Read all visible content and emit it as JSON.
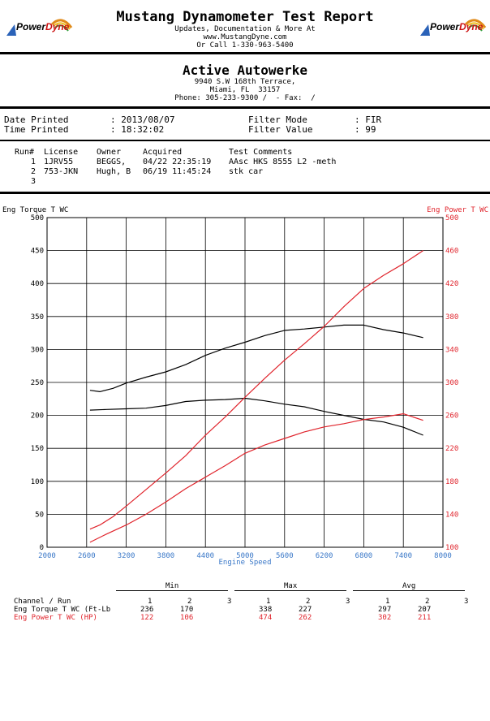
{
  "header": {
    "title": "Mustang Dynamometer Test Report",
    "line1": "Updates, Documentation & More At",
    "line2": "www.MustangDyne.com",
    "line3": "Or Call 1-330-963-5400",
    "logo_left": {
      "power": "Power",
      "dyne": "Dyne"
    },
    "logo_right": {
      "power": "Power",
      "dyne": "Dyne"
    }
  },
  "shop": {
    "name": "Active Autowerke",
    "address1": "9940 S.W 168th Terrace,",
    "address2": "Miami, FL  33157",
    "phone": "Phone: 305-233-9300 /  - Fax:  /"
  },
  "info": {
    "date_label": "Date Printed",
    "date_value": ": 2013/08/07",
    "time_label": "Time Printed",
    "time_value": ": 18:32:02",
    "filter_mode_label": "Filter Mode",
    "filter_mode_value": ": FIR",
    "filter_value_label": "Filter Value",
    "filter_value_value": ": 99"
  },
  "runs": {
    "headers": [
      "Run#",
      "License",
      "Owner",
      "Acquired",
      "Test Comments"
    ],
    "rows": [
      [
        "1",
        "1JRV55",
        "BEGGS,",
        "04/22 22:35:19",
        "AAsc HKS 8555 L2 -meth"
      ],
      [
        "2",
        "753-JKN",
        "Hugh, B",
        "06/19 11:45:24",
        "stk car"
      ],
      [
        "3",
        "",
        "",
        "",
        ""
      ]
    ]
  },
  "summary": {
    "group_min": "Min",
    "group_max": "Max",
    "group_avg": "Avg",
    "channel_header": "Channel / Run",
    "run_numbers": [
      "1",
      "2",
      "3"
    ],
    "rows": [
      {
        "label": "Eng Torque T WC (Ft-Lb",
        "min": [
          "236",
          "170",
          ""
        ],
        "max": [
          "338",
          "227",
          ""
        ],
        "avg": [
          "297",
          "207",
          ""
        ]
      },
      {
        "label": "Eng Power T WC (HP)",
        "min": [
          "122",
          "106",
          ""
        ],
        "max": [
          "474",
          "262",
          ""
        ],
        "avg": [
          "302",
          "211",
          ""
        ]
      }
    ]
  },
  "chart_data": {
    "type": "line",
    "left_axis_label": "Eng Torque T WC",
    "right_axis_label": "Eng Power T WC",
    "xlabel": "Engine Speed",
    "xlim": [
      2000,
      8000
    ],
    "x_ticks": [
      "2000",
      "2600",
      "3200",
      "3800",
      "4400",
      "5000",
      "5600",
      "6200",
      "6800",
      "7400",
      "8000"
    ],
    "ylim_left": [
      0,
      500
    ],
    "y_ticks_left": [
      "0",
      "50",
      "100",
      "150",
      "200",
      "250",
      "300",
      "350",
      "400",
      "450",
      "500"
    ],
    "ylim_right": [
      100,
      500
    ],
    "y_ticks_right": [
      "100",
      "140",
      "180",
      "220",
      "260",
      "300",
      "340",
      "380",
      "420",
      "460",
      "500"
    ],
    "grid": true,
    "colors": {
      "torque": "#000000",
      "power": "#e0242c",
      "axis_tick": "#3a78c8",
      "right_axis": "#e0242c"
    },
    "series": [
      {
        "axis": "left",
        "color": "#000000",
        "x": [
          2650,
          2800,
          3000,
          3200,
          3500,
          3800,
          4100,
          4400,
          4700,
          5000,
          5300,
          5600,
          5900,
          6200,
          6500,
          6800,
          7100,
          7400,
          7700
        ],
        "y": [
          238,
          236,
          241,
          249,
          258,
          266,
          277,
          291,
          302,
          311,
          321,
          329,
          331,
          334,
          337,
          337,
          330,
          325,
          318
        ]
      },
      {
        "axis": "left",
        "color": "#000000",
        "x": [
          2650,
          2900,
          3200,
          3500,
          3800,
          4100,
          4400,
          4700,
          5000,
          5300,
          5600,
          5900,
          6200,
          6500,
          6800,
          7100,
          7400,
          7700
        ],
        "y": [
          208,
          209,
          210,
          211,
          215,
          221,
          223,
          224,
          226,
          222,
          217,
          213,
          206,
          200,
          194,
          190,
          182,
          170
        ]
      },
      {
        "axis": "right",
        "color": "#e0242c",
        "x": [
          2650,
          2800,
          3000,
          3200,
          3500,
          3800,
          4100,
          4400,
          4700,
          5000,
          5300,
          5600,
          5900,
          6200,
          6500,
          6800,
          7100,
          7400,
          7700
        ],
        "y": [
          122,
          127,
          137,
          150,
          170,
          190,
          211,
          236,
          258,
          282,
          305,
          327,
          347,
          368,
          392,
          414,
          430,
          444,
          460
        ]
      },
      {
        "axis": "right",
        "color": "#e0242c",
        "x": [
          2650,
          2900,
          3200,
          3500,
          3800,
          4100,
          4400,
          4700,
          5000,
          5300,
          5600,
          5900,
          6200,
          6500,
          6800,
          7100,
          7400,
          7700
        ],
        "y": [
          106,
          116,
          127,
          140,
          155,
          171,
          185,
          199,
          214,
          224,
          232,
          240,
          246,
          250,
          255,
          258,
          262,
          254
        ]
      }
    ]
  }
}
